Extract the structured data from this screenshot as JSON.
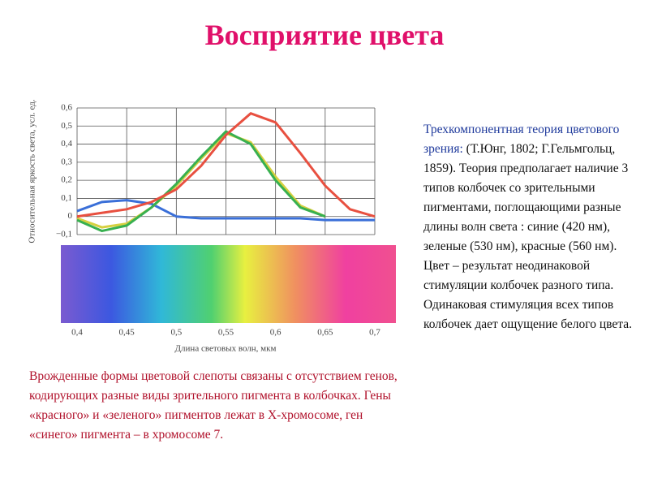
{
  "title": "Восприятие цвета",
  "chart_data": {
    "type": "line",
    "ylabel": "Относительная яркость света, усл. ед.",
    "xlabel": "Длина световых волн, мкм",
    "x": [
      0.4,
      0.425,
      0.45,
      0.475,
      0.5,
      0.525,
      0.55,
      0.575,
      0.6,
      0.625,
      0.65,
      0.675,
      0.7
    ],
    "series": [
      {
        "color": "#3a6fd8",
        "values": [
          0.03,
          0.08,
          0.09,
          0.07,
          0,
          -0.01,
          -0.01,
          -0.01,
          -0.01,
          -0.01,
          -0.02,
          -0.02,
          -0.02
        ]
      },
      {
        "color": "#d6d040",
        "values": [
          -0.01,
          -0.06,
          -0.04,
          0.05,
          0.17,
          0.32,
          0.46,
          0.41,
          0.22,
          0.06,
          0,
          null,
          null
        ]
      },
      {
        "color": "#38b050",
        "values": [
          -0.02,
          -0.08,
          -0.05,
          0.05,
          0.18,
          0.33,
          0.47,
          0.4,
          0.2,
          0.05,
          0,
          null,
          null
        ]
      },
      {
        "color": "#e85040",
        "values": [
          0,
          0.02,
          0.04,
          0.08,
          0.15,
          0.28,
          0.45,
          0.57,
          0.52,
          0.35,
          0.17,
          0.04,
          0
        ]
      }
    ],
    "xlim": [
      0.4,
      0.7
    ],
    "xticks": [
      {
        "value": 0.4,
        "label": "0,4"
      },
      {
        "value": 0.45,
        "label": "0,45"
      },
      {
        "value": 0.5,
        "label": "0,5"
      },
      {
        "value": 0.55,
        "label": "0,55"
      },
      {
        "value": 0.6,
        "label": "0,6"
      },
      {
        "value": 0.65,
        "label": "0,65"
      },
      {
        "value": 0.7,
        "label": "0,7"
      }
    ],
    "ylim": [
      -0.1,
      0.6
    ],
    "yticks": [
      {
        "value": 0.6,
        "label": "0,6"
      },
      {
        "value": 0.5,
        "label": "0,5"
      },
      {
        "value": 0.4,
        "label": "0,4"
      },
      {
        "value": 0.3,
        "label": "0,3"
      },
      {
        "value": 0.2,
        "label": "0,2"
      },
      {
        "value": 0.1,
        "label": "0,1"
      },
      0,
      {
        "value": -0.1,
        "label": "−0,1"
      }
    ],
    "grid": true
  },
  "text_right": {
    "heading": "Трехкомпонентная теория цветового зрения:",
    "body": "(Т.Юнг, 1802; Г.Гельмгольц, 1859). Теория предполагает наличие 3 типов колбочек со зрительными пигментами, поглощающими разные длины волн света : синие (420 нм), зеленые (530 нм), красные (560 нм). Цвет – результат неодинаковой стимуляции колбочек разного типа. Одинаковая стимуляция всех типов колбочек дает ощущение белого цвета."
  },
  "text_left": "Врожденные формы цветовой слепоты связаны с отсутствием генов, кодирующих разные виды зрительного пигмента в колбочках. Гены «красного» и «зеленого» пигментов лежат в Х-хромосоме, ген «синего» пигмента – в хромосоме 7."
}
